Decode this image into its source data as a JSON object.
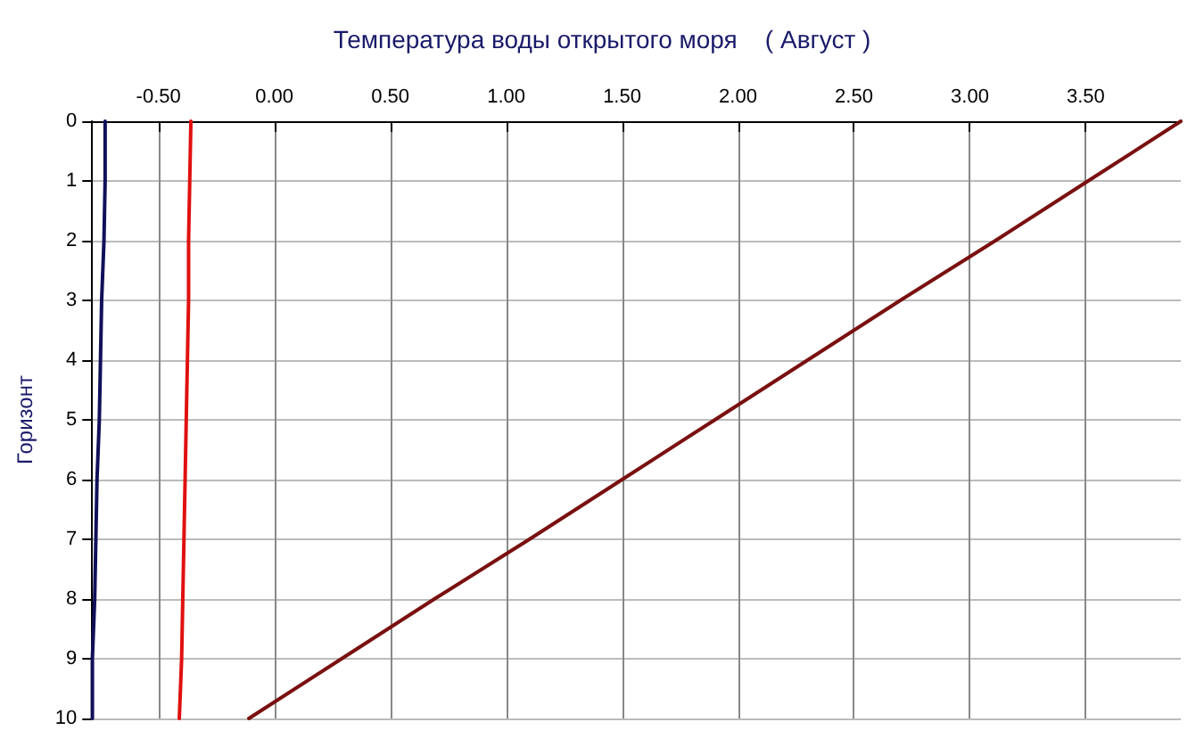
{
  "chart_data": {
    "type": "line",
    "title": "Температура воды открытого моря    ( Август )",
    "ylabel": "Горизонт",
    "orientation": "horizontal",
    "categories": [
      "0",
      "1",
      "2",
      "3",
      "4",
      "5",
      "6",
      "7",
      "8",
      "9",
      "10"
    ],
    "series": [
      {
        "color": "#10105a",
        "values": [
          -0.73,
          -0.73,
          -0.735,
          -0.745,
          -0.75,
          -0.755,
          -0.765,
          -0.77,
          -0.775,
          -0.785,
          -0.785
        ]
      },
      {
        "color": "#e01010",
        "values": [
          -0.36,
          -0.365,
          -0.37,
          -0.37,
          -0.375,
          -0.38,
          -0.385,
          -0.39,
          -0.395,
          -0.4,
          -0.41
        ]
      },
      {
        "color": "#7a1010",
        "values": [
          3.91,
          3.51,
          3.11,
          2.7,
          2.3,
          1.9,
          1.5,
          1.1,
          0.69,
          0.29,
          -0.11
        ]
      }
    ],
    "xlim": [
      -0.79,
      3.91
    ],
    "xticks": [
      {
        "value": -0.5,
        "label": "-0.50"
      },
      {
        "value": 0,
        "label": "0.00"
      },
      {
        "value": 0.5,
        "label": "0.50"
      },
      {
        "value": 1,
        "label": "1.00"
      },
      {
        "value": 1.5,
        "label": "1.50"
      },
      {
        "value": 2,
        "label": "2.00"
      },
      {
        "value": 2.5,
        "label": "2.50"
      },
      {
        "value": 3,
        "label": "3.00"
      },
      {
        "value": 3.5,
        "label": "3.50"
      }
    ],
    "grid": true,
    "line_style": "solid"
  }
}
